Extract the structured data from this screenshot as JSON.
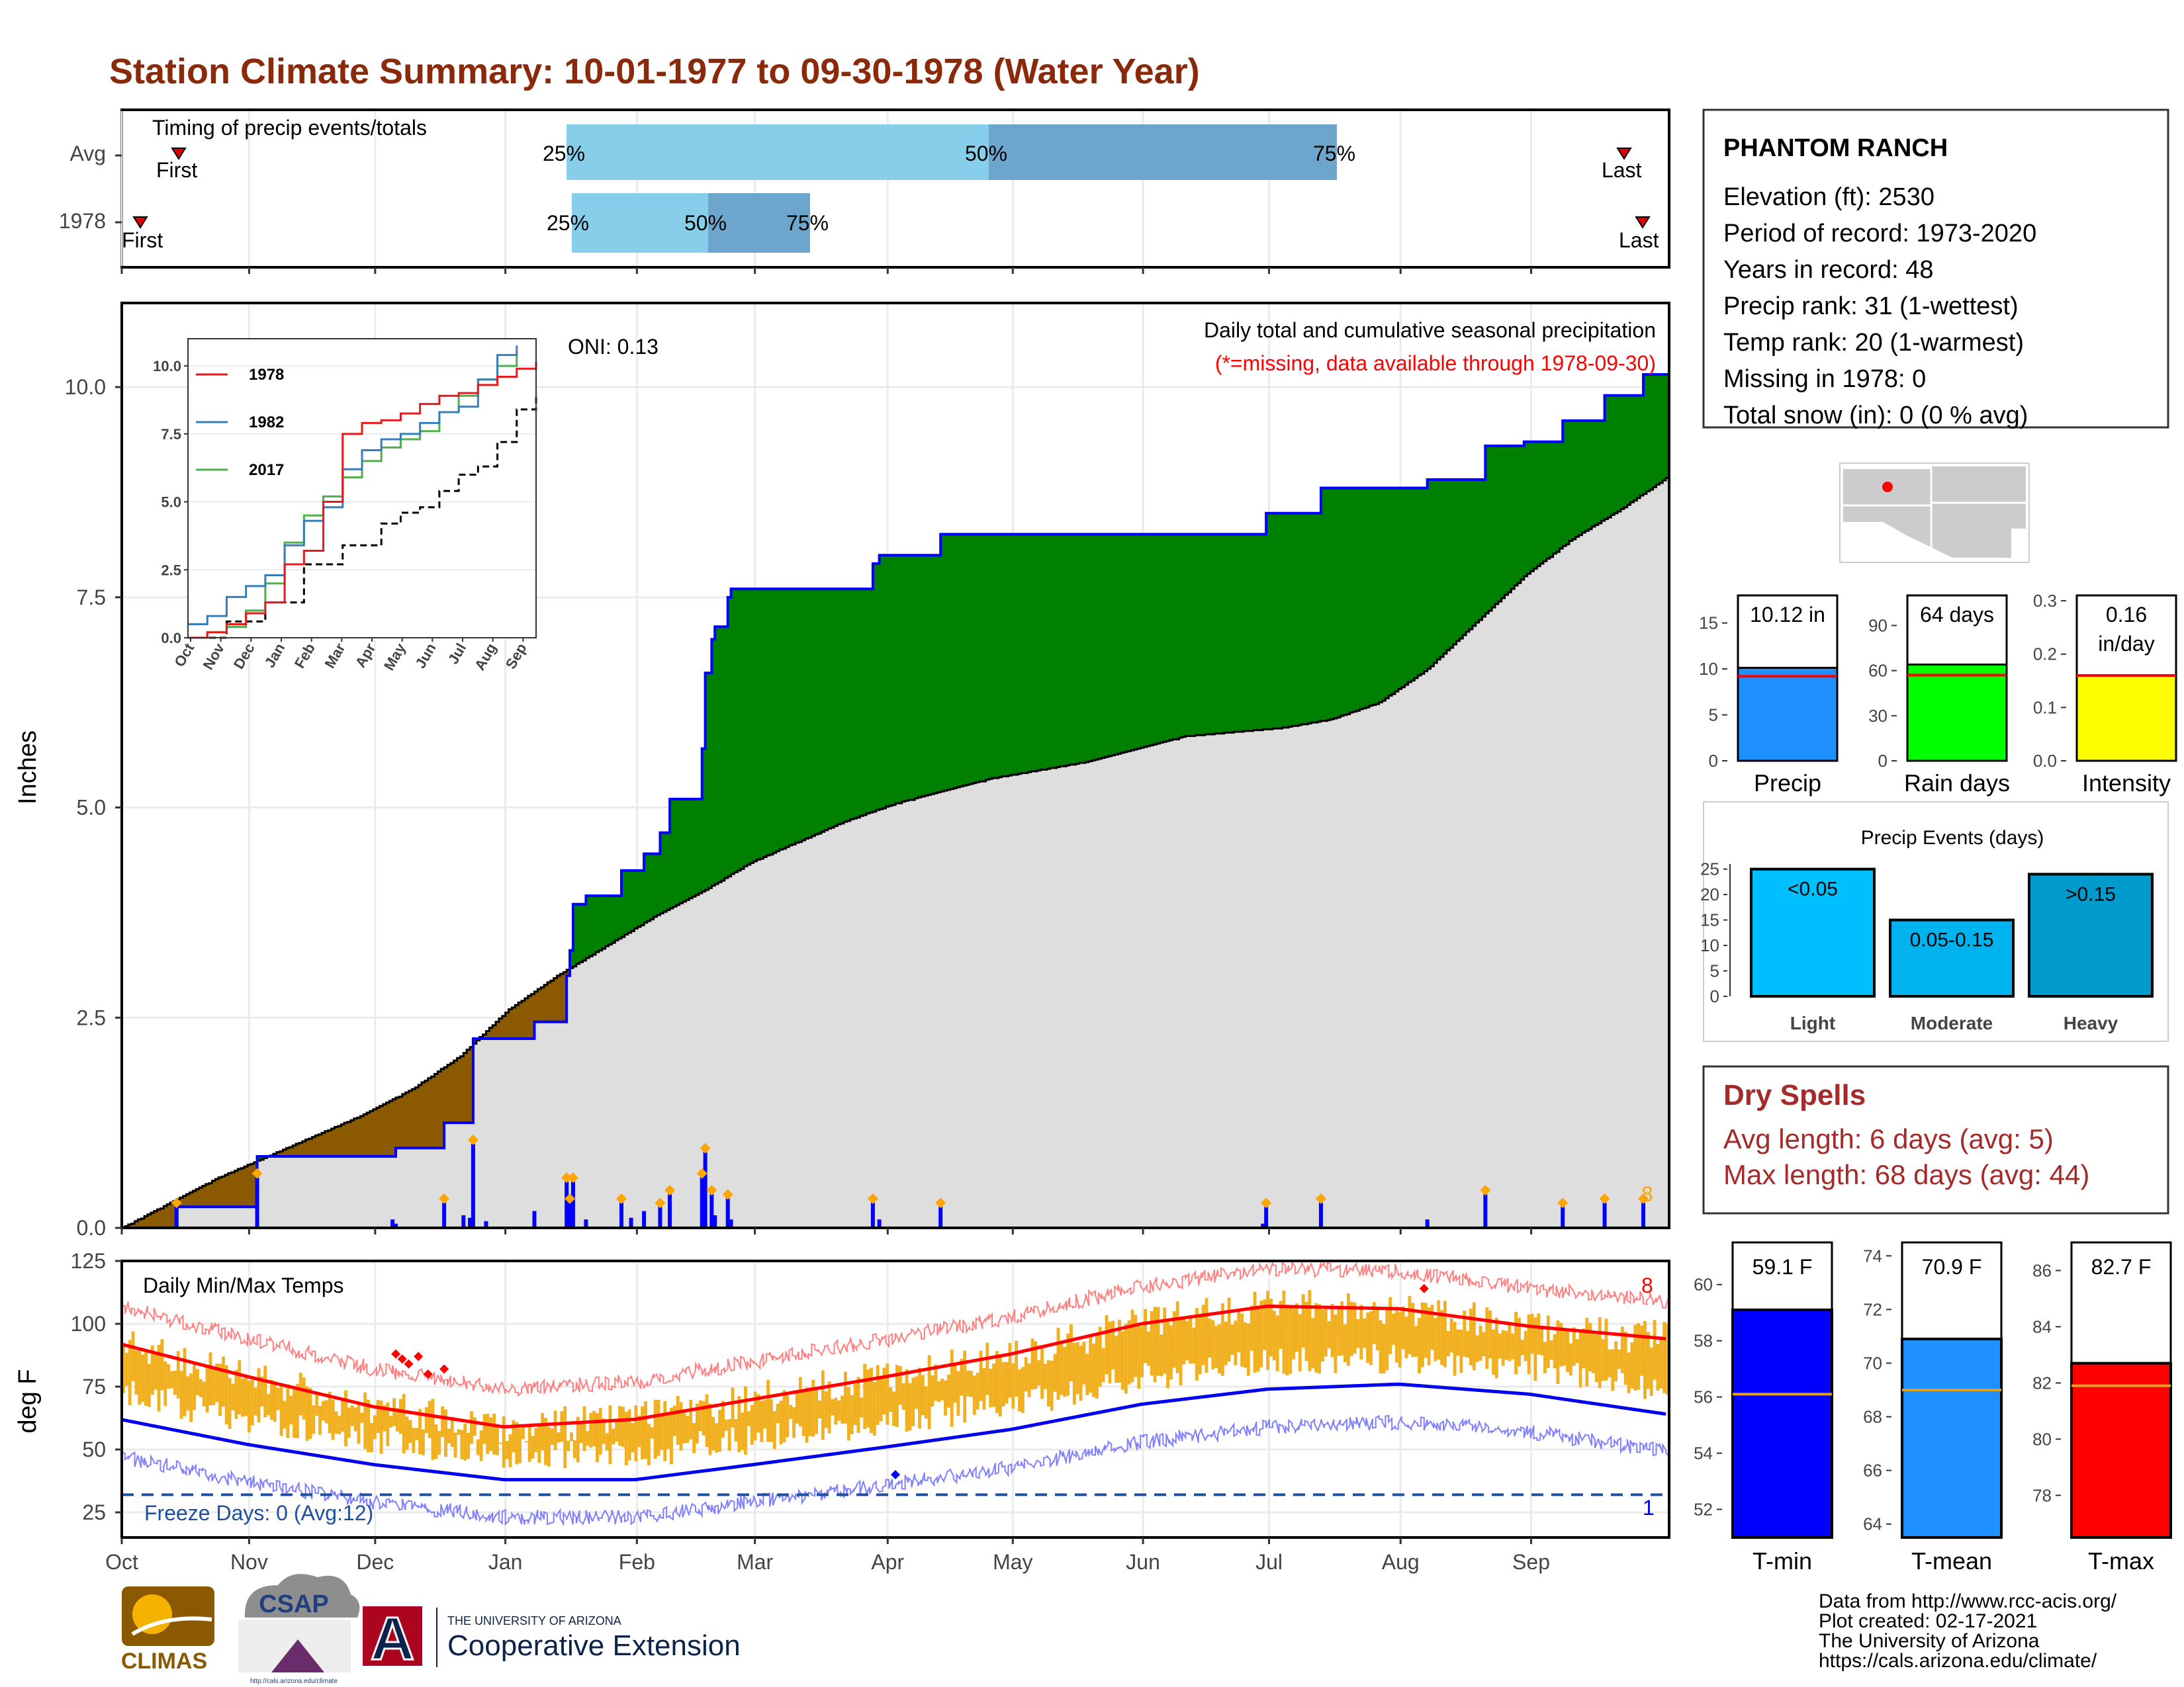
{
  "title": "Station Climate Summary: 10-01-1977 to 09-30-1978 (Water Year)",
  "colors": {
    "title": "#8B2A0A",
    "surplus": "#008000",
    "deficit": "#8B5A00",
    "avg_fill": "#DEDEDE",
    "cum_line": "#0000FF",
    "bar_light": "#87CEEB",
    "bar_dark": "#6CA6CD",
    "temp_bar": "#F0B020",
    "tmax_line": "#FF0000",
    "tmin_line": "#0000EE",
    "marker": "#FFA500"
  },
  "timing": {
    "label": "Timing of precip events/totals",
    "rows": [
      {
        "name": "Avg",
        "first_date": "Oct 23",
        "p25_date": "Jan 16",
        "p50_date": "Apr 01",
        "p75_date": "Jul 23",
        "last_date": "Sep 20"
      },
      {
        "name": "1978",
        "first_date": "Oct 06",
        "p25_date": "Jan 17",
        "p50_date": "Feb 20",
        "p75_date": "Mar 14",
        "last_date": "Sep 26"
      }
    ],
    "first_label": "First",
    "last_label": "Last",
    "p25": "25%",
    "p50": "50%",
    "p75": "75%"
  },
  "precip_panel": {
    "ylabel": "Inches",
    "oni": "ONI: 0.13",
    "note1": "Daily total and cumulative seasonal precipitation",
    "note2": "(*=missing, data available through 1978-09-30)",
    "count": "8",
    "y_ticks": [
      "0.0",
      "2.5",
      "5.0",
      "7.5",
      "10.0"
    ]
  },
  "inset": {
    "series": [
      {
        "name": "1978",
        "color": "#E41A1C"
      },
      {
        "name": "1982",
        "color": "#377EB8"
      },
      {
        "name": "2017",
        "color": "#4DAF4A"
      }
    ],
    "y_ticks": [
      "0.0",
      "2.5",
      "5.0",
      "7.5",
      "10.0"
    ],
    "x_ticks": [
      "Oct",
      "Nov",
      "Dec",
      "Jan",
      "Feb",
      "Mar",
      "Apr",
      "May",
      "Jun",
      "Jul",
      "Aug",
      "Sep"
    ]
  },
  "temp_panel": {
    "ylabel": "deg F",
    "label": "Daily Min/Max Temps",
    "freeze": "Freeze Days: 0 (Avg:12)",
    "count_max": "8",
    "count_min": "1",
    "y_ticks": [
      "25",
      "50",
      "75",
      "100",
      "125"
    ]
  },
  "months": [
    "Oct",
    "Nov",
    "Dec",
    "Jan",
    "Feb",
    "Mar",
    "Apr",
    "May",
    "Jun",
    "Jul",
    "Aug",
    "Sep"
  ],
  "station": {
    "name": "PHANTOM RANCH",
    "lines": [
      "Elevation (ft): 2530",
      "Period of record: 1973-2020",
      "Years in record: 48",
      "Precip rank: 31 (1-wettest)",
      "Temp rank: 20 (1-warmest)",
      "Missing in 1978: 0",
      "Total snow (in): 0 (0 % avg)"
    ]
  },
  "mini_bars": [
    {
      "label": "Precip",
      "value_text": "10.12 in",
      "value": 10.12,
      "avg": 9.2,
      "ymax": 18,
      "ticks": [
        "0",
        "5",
        "10",
        "15"
      ],
      "color": "#1E90FF"
    },
    {
      "label": "Rain days",
      "value_text": "64 days",
      "value": 64,
      "avg": 57,
      "ymax": 110,
      "ticks": [
        "0",
        "30",
        "60",
        "90"
      ],
      "color": "#00FF00"
    },
    {
      "label": "Intensity",
      "value_text_1": "0.16",
      "value_text_2": "in/day",
      "value": 0.16,
      "avg": 0.16,
      "ymax": 0.31,
      "ticks": [
        "0.0",
        "0.1",
        "0.2",
        "0.3"
      ],
      "color": "#FFFF00"
    }
  ],
  "events": {
    "title": "Precip Events (days)",
    "ticks": [
      "0",
      "5",
      "10",
      "15",
      "20",
      "25"
    ],
    "bars": [
      {
        "cat": "Light",
        "label": "<0.05",
        "value": 25,
        "color": "#00BFFF"
      },
      {
        "cat": "Moderate",
        "label": "0.05-0.15",
        "value": 15,
        "color": "#00B2EE"
      },
      {
        "cat": "Heavy",
        "label": ">0.15",
        "value": 24,
        "color": "#009ACD"
      }
    ]
  },
  "dry_spells": {
    "title": "Dry Spells",
    "line1": "Avg length: 6 days (avg: 5)",
    "line2": "Max length: 68 days (avg: 44)"
  },
  "temp_bars": [
    {
      "label": "T-min",
      "value_text": "59.1 F",
      "value": 59.1,
      "avg": 56.1,
      "ymin": 51,
      "ymax": 61.5,
      "ticks": [
        "52",
        "54",
        "56",
        "58",
        "60"
      ],
      "color": "#0000FF"
    },
    {
      "label": "T-mean",
      "value_text": "70.9 F",
      "value": 70.9,
      "avg": 69.0,
      "ymin": 63.5,
      "ymax": 74.5,
      "ticks": [
        "64",
        "66",
        "68",
        "70",
        "72",
        "74"
      ],
      "color": "#1E90FF"
    },
    {
      "label": "T-max",
      "value_text": "82.7 F",
      "value": 82.7,
      "avg": 81.9,
      "ymin": 76.5,
      "ymax": 87,
      "ticks": [
        "78",
        "80",
        "82",
        "84",
        "86"
      ],
      "color": "#FF0000"
    }
  ],
  "footer": {
    "lines": [
      "Data from http://www.rcc-acis.org/",
      "Plot created: 02-17-2021",
      "The University of Arizona",
      "https://cals.arizona.edu/climate/"
    ],
    "climas": "CLIMAS",
    "csap": "CSAP",
    "csap_url": "http://cals.arizona.edu/climate",
    "ua_small": "THE UNIVERSITY OF ARIZONA",
    "ua_big": "Cooperative Extension",
    "ua_letter": "A"
  },
  "chart_data": {
    "type": "area",
    "title": "Daily total and cumulative seasonal precipitation",
    "ylabel": "Inches",
    "ylim": [
      0,
      11
    ],
    "x_unit": "day of water year (Oct 1 = 0)",
    "cumulative_1978": [
      [
        0,
        0
      ],
      [
        16,
        0
      ],
      [
        17,
        0.25
      ],
      [
        41,
        0.25
      ],
      [
        42,
        0.85
      ],
      [
        83,
        0.85
      ],
      [
        85,
        0.95
      ],
      [
        99,
        0.95
      ],
      [
        100,
        1.25
      ],
      [
        108,
        1.25
      ],
      [
        109,
        2.25
      ],
      [
        127,
        2.25
      ],
      [
        128,
        2.45
      ],
      [
        137,
        2.45
      ],
      [
        138,
        3.0
      ],
      [
        139,
        3.3
      ],
      [
        140,
        3.85
      ],
      [
        143,
        3.85
      ],
      [
        144,
        3.95
      ],
      [
        154,
        3.95
      ],
      [
        155,
        4.25
      ],
      [
        162,
        4.45
      ],
      [
        167,
        4.7
      ],
      [
        170,
        5.1
      ],
      [
        179,
        5.1
      ],
      [
        180,
        5.7
      ],
      [
        181,
        6.6
      ],
      [
        183,
        7.0
      ],
      [
        184,
        7.15
      ],
      [
        187,
        7.15
      ],
      [
        188,
        7.5
      ],
      [
        189,
        7.6
      ],
      [
        194,
        7.6
      ],
      [
        195,
        7.6
      ],
      [
        232,
        7.6
      ],
      [
        233,
        7.9
      ],
      [
        235,
        8.0
      ],
      [
        253,
        8.0
      ],
      [
        254,
        8.25
      ],
      [
        354,
        8.25
      ],
      [
        355,
        8.5
      ],
      [
        371,
        8.5
      ],
      [
        372,
        8.8
      ],
      [
        404,
        8.8
      ],
      [
        405,
        8.9
      ],
      [
        422,
        8.9
      ],
      [
        423,
        9.3
      ],
      [
        434,
        9.3
      ],
      [
        435,
        9.35
      ],
      [
        446,
        9.35
      ],
      [
        447,
        9.6
      ],
      [
        459,
        9.6
      ],
      [
        460,
        9.9
      ],
      [
        471,
        9.9
      ],
      [
        472,
        10.15
      ],
      [
        480,
        10.15
      ]
    ],
    "average_cum": [
      [
        0,
        0
      ],
      [
        15,
        0.3
      ],
      [
        30,
        0.6
      ],
      [
        45,
        0.85
      ],
      [
        60,
        1.1
      ],
      [
        75,
        1.35
      ],
      [
        90,
        1.65
      ],
      [
        105,
        2.05
      ],
      [
        120,
        2.6
      ],
      [
        135,
        3.0
      ],
      [
        150,
        3.35
      ],
      [
        165,
        3.7
      ],
      [
        180,
        4.0
      ],
      [
        195,
        4.35
      ],
      [
        210,
        4.6
      ],
      [
        225,
        4.85
      ],
      [
        240,
        5.05
      ],
      [
        255,
        5.2
      ],
      [
        270,
        5.35
      ],
      [
        285,
        5.45
      ],
      [
        300,
        5.55
      ],
      [
        315,
        5.7
      ],
      [
        330,
        5.85
      ],
      [
        345,
        5.9
      ],
      [
        360,
        5.95
      ],
      [
        375,
        6.05
      ],
      [
        390,
        6.25
      ],
      [
        405,
        6.65
      ],
      [
        420,
        7.2
      ],
      [
        435,
        7.75
      ],
      [
        450,
        8.2
      ],
      [
        465,
        8.55
      ],
      [
        480,
        8.95
      ]
    ],
    "daily_bars": [
      [
        17,
        0.25
      ],
      [
        42,
        0.6
      ],
      [
        84,
        0.1
      ],
      [
        85,
        0.05
      ],
      [
        100,
        0.3
      ],
      [
        106,
        0.15
      ],
      [
        108,
        0.12
      ],
      [
        109,
        1.0
      ],
      [
        113,
        0.08
      ],
      [
        128,
        0.2
      ],
      [
        138,
        0.55
      ],
      [
        139,
        0.3
      ],
      [
        140,
        0.55
      ],
      [
        144,
        0.1
      ],
      [
        155,
        0.3
      ],
      [
        158,
        0.12
      ],
      [
        162,
        0.2
      ],
      [
        167,
        0.25
      ],
      [
        170,
        0.4
      ],
      [
        180,
        0.6
      ],
      [
        181,
        0.9
      ],
      [
        183,
        0.4
      ],
      [
        184,
        0.15
      ],
      [
        188,
        0.35
      ],
      [
        189,
        0.1
      ],
      [
        233,
        0.3
      ],
      [
        235,
        0.1
      ],
      [
        254,
        0.25
      ],
      [
        354,
        0.05
      ],
      [
        355,
        0.25
      ],
      [
        372,
        0.3
      ],
      [
        405,
        0.1
      ],
      [
        423,
        0.4
      ],
      [
        447,
        0.25
      ],
      [
        460,
        0.3
      ],
      [
        472,
        0.3
      ]
    ],
    "inset_cumulative": {
      "1978": [
        [
          0,
          0
        ],
        [
          1,
          0.2
        ],
        [
          2,
          0.5
        ],
        [
          3,
          0.9
        ],
        [
          4,
          1.3
        ],
        [
          5,
          2.7
        ],
        [
          6,
          3.2
        ],
        [
          7,
          5.0
        ],
        [
          8,
          7.5
        ],
        [
          9,
          7.9
        ],
        [
          10,
          8.0
        ],
        [
          11,
          8.25
        ],
        [
          12,
          8.6
        ],
        [
          13,
          8.9
        ],
        [
          14,
          9.0
        ],
        [
          15,
          9.3
        ],
        [
          16,
          9.6
        ],
        [
          17,
          9.9
        ],
        [
          18,
          10.15
        ]
      ],
      "1982": [
        [
          0,
          0.5
        ],
        [
          1,
          0.8
        ],
        [
          2,
          1.5
        ],
        [
          3,
          1.9
        ],
        [
          4,
          2.3
        ],
        [
          5,
          3.4
        ],
        [
          6,
          4.3
        ],
        [
          7,
          4.8
        ],
        [
          8,
          6.2
        ],
        [
          9,
          6.9
        ],
        [
          10,
          7.3
        ],
        [
          11,
          7.5
        ],
        [
          12,
          7.9
        ],
        [
          13,
          8.3
        ],
        [
          14,
          8.5
        ],
        [
          15,
          9.5
        ],
        [
          16,
          10.4
        ],
        [
          17,
          10.75
        ]
      ],
      "2017": [
        [
          0,
          0
        ],
        [
          1,
          0.2
        ],
        [
          2,
          0.4
        ],
        [
          3,
          1.0
        ],
        [
          4,
          2.0
        ],
        [
          5,
          3.5
        ],
        [
          6,
          4.5
        ],
        [
          7,
          5.2
        ],
        [
          8,
          5.9
        ],
        [
          9,
          6.5
        ],
        [
          10,
          7.0
        ],
        [
          11,
          7.3
        ],
        [
          12,
          7.6
        ],
        [
          13,
          8.3
        ],
        [
          14,
          8.9
        ],
        [
          15,
          9.5
        ],
        [
          16,
          10.0
        ],
        [
          17,
          10.5
        ]
      ],
      "average": [
        [
          0,
          0
        ],
        [
          2,
          0.6
        ],
        [
          4,
          1.3
        ],
        [
          6,
          2.7
        ],
        [
          8,
          3.4
        ],
        [
          10,
          4.2
        ],
        [
          11,
          4.6
        ],
        [
          12,
          4.8
        ],
        [
          13,
          5.4
        ],
        [
          14,
          6.0
        ],
        [
          15,
          6.3
        ],
        [
          16,
          7.2
        ],
        [
          17,
          8.4
        ],
        [
          18,
          9.0
        ]
      ]
    },
    "temps_monthly_mean_max": [
      [
        0,
        92
      ],
      [
        1,
        79
      ],
      [
        2,
        67
      ],
      [
        3,
        59
      ],
      [
        4,
        62
      ],
      [
        5,
        70
      ],
      [
        6,
        79
      ],
      [
        7,
        88
      ],
      [
        8,
        100
      ],
      [
        9,
        107
      ],
      [
        10,
        106
      ],
      [
        11,
        99
      ],
      [
        12,
        94
      ]
    ],
    "temps_monthly_mean_min": [
      [
        0,
        62
      ],
      [
        1,
        52
      ],
      [
        2,
        44
      ],
      [
        3,
        38
      ],
      [
        4,
        38
      ],
      [
        5,
        44
      ],
      [
        6,
        51
      ],
      [
        7,
        58
      ],
      [
        8,
        68
      ],
      [
        9,
        74
      ],
      [
        10,
        76
      ],
      [
        11,
        72
      ],
      [
        12,
        64
      ]
    ],
    "freeze_line": 32,
    "temp_ylim": [
      15,
      125
    ]
  }
}
